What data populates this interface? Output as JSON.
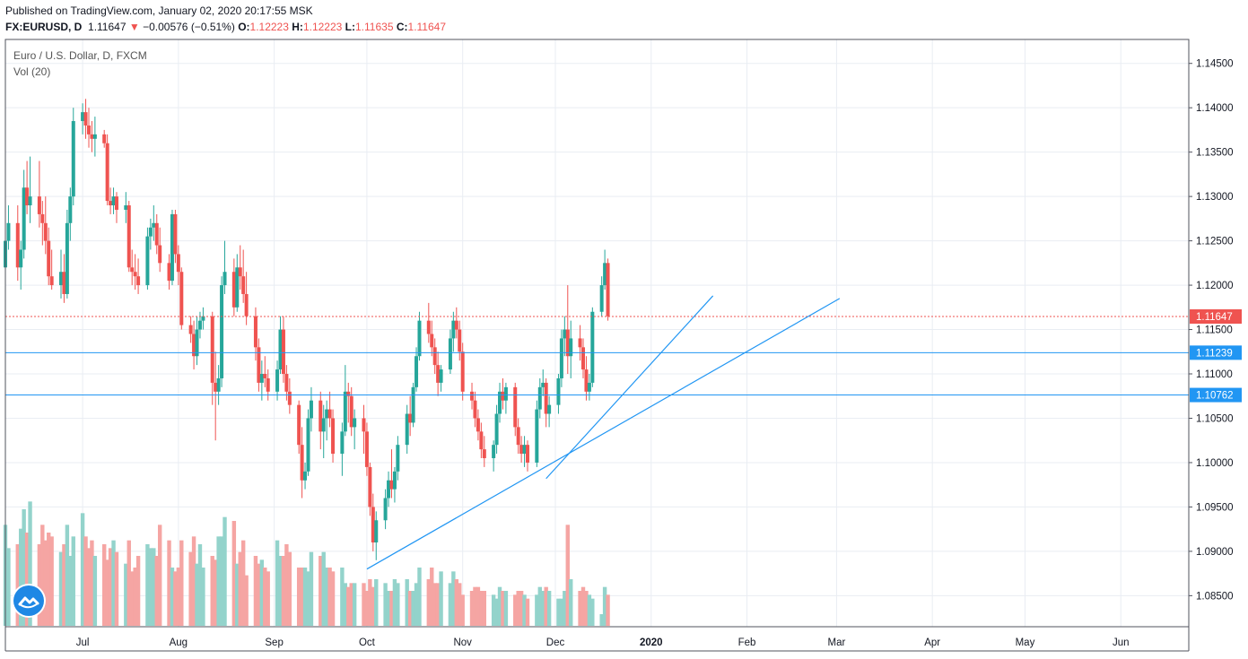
{
  "header": {
    "published": "Published on TradingView.com, January 02, 2020 20:17:55 MSK",
    "symbol": "FX:EURUSD, D",
    "last": "1.11647",
    "change_arrow": "▼",
    "change": "−0.00576 (−0.51%)",
    "o_label": "O:",
    "o_value": "1.12223",
    "h_label": "H:",
    "h_value": "1.12223",
    "l_label": "L:",
    "l_value": "1.11635",
    "c_label": "C:",
    "c_value": "1.11647"
  },
  "legend": {
    "instrument": "Euro / U.S. Dollar, D, FXCM",
    "indicator": "Vol (20)"
  },
  "logo_icon": "tradingview-logo-icon",
  "colors": {
    "up": "#26a69a",
    "down": "#ef5350",
    "vol_up": "#93d3cb",
    "vol_down": "#f5a5a3",
    "drawing": "#2196f3",
    "grid": "#e9edf3",
    "price_label_bg": "#ef5350",
    "level_label_bg": "#2196f3"
  },
  "chart_data": {
    "type": "candlestick",
    "title": "Euro / U.S. Dollar, D, FXCM",
    "price_axis_ticks": [
      "1.14500",
      "1.14000",
      "1.13500",
      "1.13000",
      "1.12500",
      "1.12000",
      "1.11500",
      "1.11000",
      "1.10500",
      "1.10000",
      "1.09500",
      "1.09000",
      "1.08500"
    ],
    "y_range": [
      1.0815,
      1.1477
    ],
    "time_axis_labels": [
      "Jul",
      "Aug",
      "Sep",
      "Oct",
      "Nov",
      "Dec",
      "2020",
      "Feb",
      "Mar",
      "Apr",
      "May",
      "Jun"
    ],
    "x_range": [
      "2019-06-06",
      "2020-06-23"
    ],
    "time_axis_dates": [
      "2019-07-01",
      "2019-08-01",
      "2019-09-01",
      "2019-10-01",
      "2019-11-01",
      "2019-12-01",
      "2020-01-01",
      "2020-02-01",
      "2020-03-01",
      "2020-04-01",
      "2020-05-01",
      "2020-06-01"
    ],
    "last_price": {
      "value": 1.11647,
      "label": "1.11647"
    },
    "horizontal_levels": [
      {
        "value": 1.11239,
        "label": "1.11239"
      },
      {
        "value": 1.10762,
        "label": "1.10762"
      }
    ],
    "trendlines": [
      {
        "from": [
          "2019-10-01",
          1.088
        ],
        "to": [
          "2020-03-02",
          1.1185
        ]
      },
      {
        "from": [
          "2019-11-28",
          1.0982
        ],
        "to": [
          "2020-01-21",
          1.1188
        ]
      }
    ],
    "candles_from": "2019-06-06",
    "candles": [
      [
        1.122,
        1.126,
        1.1195,
        1.125
      ],
      [
        1.125,
        1.129,
        1.124,
        1.127
      ],
      [
        1.127,
        1.129,
        1.1205,
        1.122
      ],
      [
        1.122,
        1.125,
        1.1195,
        1.124
      ],
      [
        1.124,
        1.133,
        1.123,
        1.131
      ],
      [
        1.131,
        1.134,
        1.128,
        1.129
      ],
      [
        1.129,
        1.1345,
        1.127,
        1.13
      ],
      [
        1.13,
        1.134,
        1.1265,
        1.128
      ],
      [
        1.128,
        1.1295,
        1.1245,
        1.127
      ],
      [
        1.127,
        1.13,
        1.1235,
        1.125
      ],
      [
        1.125,
        1.1265,
        1.12,
        1.121
      ],
      [
        1.121,
        1.124,
        1.1195,
        1.12
      ],
      [
        1.12,
        1.124,
        1.1185,
        1.1215
      ],
      [
        1.1215,
        1.1235,
        1.118,
        1.119
      ],
      [
        1.119,
        1.1285,
        1.1185,
        1.127
      ],
      [
        1.127,
        1.131,
        1.125,
        1.13
      ],
      [
        1.13,
        1.14,
        1.129,
        1.1385
      ],
      [
        1.1385,
        1.1405,
        1.137,
        1.1395
      ],
      [
        1.1395,
        1.141,
        1.1365,
        1.138
      ],
      [
        1.138,
        1.14,
        1.1355,
        1.137
      ],
      [
        1.137,
        1.1385,
        1.135,
        1.1365
      ],
      [
        1.1365,
        1.139,
        1.1345,
        1.137
      ],
      [
        1.137,
        1.1375,
        1.1355,
        1.136
      ],
      [
        1.136,
        1.137,
        1.129,
        1.1295
      ],
      [
        1.1295,
        1.131,
        1.128,
        1.129
      ],
      [
        1.129,
        1.131,
        1.128,
        1.13
      ],
      [
        1.13,
        1.1305,
        1.127,
        1.1285
      ],
      [
        1.1285,
        1.1305,
        1.127,
        1.129
      ],
      [
        1.129,
        1.1295,
        1.1215,
        1.122
      ],
      [
        1.122,
        1.124,
        1.12,
        1.1215
      ],
      [
        1.1215,
        1.1235,
        1.1195,
        1.121
      ],
      [
        1.121,
        1.123,
        1.119,
        1.12
      ],
      [
        1.12,
        1.1265,
        1.1195,
        1.1255
      ],
      [
        1.1255,
        1.1275,
        1.124,
        1.1265
      ],
      [
        1.1265,
        1.129,
        1.125,
        1.127
      ],
      [
        1.127,
        1.128,
        1.1235,
        1.1245
      ],
      [
        1.1245,
        1.1265,
        1.1215,
        1.1225
      ],
      [
        1.1225,
        1.1235,
        1.1195,
        1.1205
      ],
      [
        1.1205,
        1.1285,
        1.12,
        1.128
      ],
      [
        1.128,
        1.1285,
        1.1225,
        1.1235
      ],
      [
        1.1235,
        1.1245,
        1.12,
        1.1215
      ],
      [
        1.1215,
        1.122,
        1.115,
        1.1155
      ],
      [
        1.1155,
        1.1165,
        1.1135,
        1.1145
      ],
      [
        1.1145,
        1.116,
        1.1105,
        1.112
      ],
      [
        1.112,
        1.1165,
        1.111,
        1.115
      ],
      [
        1.115,
        1.117,
        1.114,
        1.116
      ],
      [
        1.116,
        1.1175,
        1.115,
        1.1165
      ],
      [
        1.1165,
        1.117,
        1.1065,
        1.109
      ],
      [
        1.109,
        1.1125,
        1.1025,
        1.108
      ],
      [
        1.108,
        1.111,
        1.1065,
        1.1095
      ],
      [
        1.1095,
        1.121,
        1.1085,
        1.12
      ],
      [
        1.12,
        1.125,
        1.119,
        1.1215
      ],
      [
        1.1215,
        1.123,
        1.1165,
        1.1175
      ],
      [
        1.1175,
        1.1235,
        1.117,
        1.122
      ],
      [
        1.122,
        1.1245,
        1.1195,
        1.121
      ],
      [
        1.121,
        1.124,
        1.118,
        1.119
      ],
      [
        1.119,
        1.1215,
        1.1155,
        1.1165
      ],
      [
        1.1165,
        1.1175,
        1.1115,
        1.113
      ],
      [
        1.113,
        1.114,
        1.108,
        1.109
      ],
      [
        1.109,
        1.1115,
        1.107,
        1.11
      ],
      [
        1.11,
        1.112,
        1.1085,
        1.1095
      ],
      [
        1.1095,
        1.1105,
        1.107,
        1.108
      ],
      [
        1.108,
        1.1115,
        1.107,
        1.1105
      ],
      [
        1.1105,
        1.1165,
        1.11,
        1.115
      ],
      [
        1.115,
        1.1165,
        1.109,
        1.11
      ],
      [
        1.11,
        1.111,
        1.107,
        1.108
      ],
      [
        1.108,
        1.1095,
        1.1055,
        1.1065
      ],
      [
        1.1065,
        1.107,
        1.101,
        1.102
      ],
      [
        1.102,
        1.104,
        1.096,
        1.098
      ],
      [
        1.098,
        1.1,
        1.097,
        1.099
      ],
      [
        1.099,
        1.106,
        1.0985,
        1.105
      ],
      [
        1.105,
        1.1085,
        1.1035,
        1.107
      ],
      [
        1.107,
        1.108,
        1.1015,
        1.1035
      ],
      [
        1.1035,
        1.1065,
        1.1005,
        1.105
      ],
      [
        1.105,
        1.107,
        1.1025,
        1.106
      ],
      [
        1.106,
        1.108,
        1.104,
        1.105
      ],
      [
        1.105,
        1.106,
        1.1,
        1.101
      ],
      [
        1.101,
        1.1045,
        1.0985,
        1.1035
      ],
      [
        1.1035,
        1.111,
        1.103,
        1.108
      ],
      [
        1.108,
        1.109,
        1.1045,
        1.1075
      ],
      [
        1.1075,
        1.1085,
        1.103,
        1.104
      ],
      [
        1.104,
        1.106,
        1.1015,
        1.105
      ],
      [
        1.105,
        1.1065,
        1.101,
        1.1035
      ],
      [
        1.1035,
        1.1045,
        1.0985,
        1.0995
      ],
      [
        1.0995,
        1.1,
        1.094,
        1.095
      ],
      [
        1.095,
        1.0965,
        1.09,
        1.091
      ],
      [
        1.091,
        1.0945,
        1.089,
        1.0935
      ],
      [
        1.0935,
        1.097,
        1.0925,
        1.096
      ],
      [
        1.096,
        1.099,
        1.095,
        1.098
      ],
      [
        1.098,
        1.1015,
        1.096,
        1.097
      ],
      [
        1.097,
        1.0995,
        1.0955,
        1.099
      ],
      [
        1.099,
        1.103,
        1.098,
        1.102
      ],
      [
        1.102,
        1.1065,
        1.101,
        1.1055
      ],
      [
        1.1055,
        1.1075,
        1.103,
        1.1045
      ],
      [
        1.1045,
        1.109,
        1.104,
        1.1085
      ],
      [
        1.1085,
        1.113,
        1.108,
        1.112
      ],
      [
        1.112,
        1.117,
        1.1115,
        1.116
      ],
      [
        1.116,
        1.118,
        1.1135,
        1.1145
      ],
      [
        1.1145,
        1.116,
        1.112,
        1.113
      ],
      [
        1.113,
        1.114,
        1.11,
        1.111
      ],
      [
        1.111,
        1.1125,
        1.1075,
        1.109
      ],
      [
        1.109,
        1.111,
        1.108,
        1.1105
      ],
      [
        1.1105,
        1.115,
        1.11,
        1.114
      ],
      [
        1.114,
        1.117,
        1.1125,
        1.116
      ],
      [
        1.116,
        1.1175,
        1.114,
        1.115
      ],
      [
        1.115,
        1.116,
        1.1115,
        1.1125
      ],
      [
        1.1125,
        1.1135,
        1.107,
        1.108
      ],
      [
        1.108,
        1.109,
        1.106,
        1.107
      ],
      [
        1.107,
        1.108,
        1.104,
        1.105
      ],
      [
        1.105,
        1.106,
        1.1025,
        1.1035
      ],
      [
        1.1035,
        1.1045,
        1.1005,
        1.1015
      ],
      [
        1.1015,
        1.103,
        1.0995,
        1.1005
      ],
      [
        1.1005,
        1.1025,
        1.099,
        1.102
      ],
      [
        1.102,
        1.1065,
        1.101,
        1.1055
      ],
      [
        1.1055,
        1.109,
        1.1045,
        1.108
      ],
      [
        1.108,
        1.1095,
        1.106,
        1.107
      ],
      [
        1.107,
        1.109,
        1.1055,
        1.1085
      ],
      [
        1.1085,
        1.109,
        1.103,
        1.104
      ],
      [
        1.104,
        1.105,
        1.101,
        1.102
      ],
      [
        1.102,
        1.103,
        1.1,
        1.101
      ],
      [
        1.101,
        1.103,
        1.0995,
        1.102
      ],
      [
        1.102,
        1.1025,
        1.099,
        1.1
      ],
      [
        1.1,
        1.107,
        1.0995,
        1.106
      ],
      [
        1.106,
        1.1095,
        1.105,
        1.1085
      ],
      [
        1.1085,
        1.1105,
        1.1075,
        1.109
      ],
      [
        1.109,
        1.1095,
        1.104,
        1.1055
      ],
      [
        1.1055,
        1.1075,
        1.104,
        1.1065
      ],
      [
        1.1065,
        1.11,
        1.1055,
        1.1095
      ],
      [
        1.1095,
        1.115,
        1.1085,
        1.114
      ],
      [
        1.114,
        1.1165,
        1.112,
        1.115
      ],
      [
        1.115,
        1.12,
        1.11,
        1.112
      ],
      [
        1.112,
        1.116,
        1.1095,
        1.114
      ],
      [
        1.114,
        1.1155,
        1.1115,
        1.113
      ],
      [
        1.113,
        1.114,
        1.1095,
        1.1105
      ],
      [
        1.1105,
        1.112,
        1.107,
        1.108
      ],
      [
        1.108,
        1.11,
        1.107,
        1.109
      ],
      [
        1.109,
        1.1175,
        1.1085,
        1.117
      ],
      [
        1.117,
        1.121,
        1.1165,
        1.12
      ],
      [
        1.12,
        1.124,
        1.1195,
        1.1225
      ],
      [
        1.1225,
        1.123,
        1.116,
        1.1165
      ]
    ],
    "volumes": [
      26,
      20,
      21,
      25,
      30,
      24,
      32,
      21,
      26,
      22,
      24,
      23,
      19,
      21,
      26,
      18,
      23,
      29,
      23,
      20,
      22,
      18,
      21,
      17,
      20,
      22,
      19,
      16,
      22,
      14,
      15,
      18,
      21,
      20,
      20,
      18,
      26,
      22,
      15,
      14,
      15,
      22,
      19,
      23,
      16,
      21,
      15,
      18,
      17,
      23,
      23,
      28,
      27,
      16,
      19,
      22,
      13,
      18,
      16,
      17,
      15,
      14,
      22,
      18,
      18,
      21,
      19,
      15,
      15,
      15,
      14,
      19,
      18,
      19,
      15,
      15,
      14,
      15,
      11,
      10,
      11,
      11,
      11,
      9,
      12,
      10,
      12,
      11,
      9,
      9,
      12,
      11,
      12,
      9,
      9,
      11,
      15,
      12,
      15,
      11,
      11,
      14,
      11,
      14,
      12,
      11,
      8,
      9,
      10,
      10,
      9,
      9,
      8,
      7,
      10,
      9,
      9,
      8,
      9,
      9,
      8,
      7,
      8,
      10,
      9,
      10,
      9,
      7,
      7,
      9,
      26,
      12,
      9,
      10,
      9,
      8,
      7,
      3,
      10,
      8
    ]
  }
}
